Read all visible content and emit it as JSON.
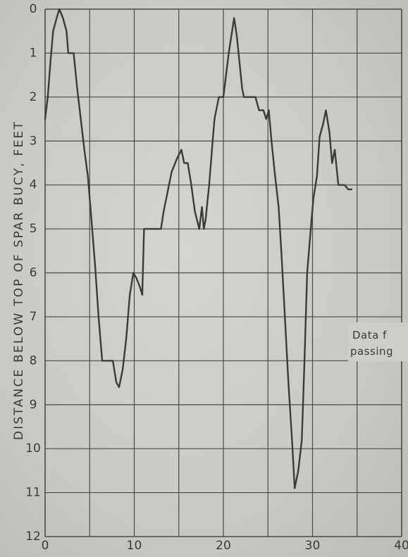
{
  "chart_data": {
    "type": "line",
    "title": "",
    "xlabel": "",
    "ylabel": "DISTANCE BELOW TOP OF SPAR BUCY, FEET",
    "xlim": [
      0,
      40
    ],
    "ylim": [
      0,
      12
    ],
    "y_inverted": true,
    "grid": true,
    "x_ticks": [
      "0",
      "10",
      "20",
      "30",
      "40"
    ],
    "y_ticks": [
      "0",
      "1",
      "2",
      "3",
      "4",
      "5",
      "6",
      "7",
      "8",
      "9",
      "10",
      "11",
      "12"
    ],
    "annotation_lines": [
      "Data f",
      "passing"
    ],
    "series": [
      {
        "points": [
          [
            0.0,
            2.5
          ],
          [
            0.3,
            2.0
          ],
          [
            0.6,
            1.2
          ],
          [
            0.9,
            0.5
          ],
          [
            1.3,
            0.2
          ],
          [
            1.6,
            0.0
          ],
          [
            2.0,
            0.2
          ],
          [
            2.4,
            0.5
          ],
          [
            2.6,
            1.0
          ],
          [
            3.0,
            1.0
          ],
          [
            3.2,
            1.0
          ],
          [
            3.6,
            1.8
          ],
          [
            4.0,
            2.5
          ],
          [
            4.4,
            3.2
          ],
          [
            4.8,
            3.8
          ],
          [
            5.2,
            4.8
          ],
          [
            5.6,
            5.8
          ],
          [
            6.0,
            7.0
          ],
          [
            6.4,
            8.0
          ],
          [
            7.0,
            8.0
          ],
          [
            7.6,
            8.0
          ],
          [
            8.0,
            8.5
          ],
          [
            8.3,
            8.6
          ],
          [
            8.7,
            8.2
          ],
          [
            9.1,
            7.5
          ],
          [
            9.5,
            6.5
          ],
          [
            9.9,
            6.0
          ],
          [
            10.2,
            6.1
          ],
          [
            10.6,
            6.3
          ],
          [
            10.9,
            6.5
          ],
          [
            11.1,
            5.0
          ],
          [
            12.0,
            5.0
          ],
          [
            13.0,
            5.0
          ],
          [
            13.3,
            4.6
          ],
          [
            13.7,
            4.2
          ],
          [
            14.2,
            3.7
          ],
          [
            14.8,
            3.4
          ],
          [
            15.3,
            3.2
          ],
          [
            15.6,
            3.5
          ],
          [
            16.0,
            3.5
          ],
          [
            16.4,
            4.0
          ],
          [
            16.8,
            4.6
          ],
          [
            17.3,
            5.0
          ],
          [
            17.6,
            4.5
          ],
          [
            17.8,
            5.0
          ],
          [
            18.0,
            4.8
          ],
          [
            18.4,
            4.0
          ],
          [
            18.8,
            3.0
          ],
          [
            19.0,
            2.5
          ],
          [
            19.3,
            2.2
          ],
          [
            19.5,
            2.0
          ],
          [
            20.0,
            2.0
          ],
          [
            20.3,
            1.5
          ],
          [
            20.6,
            1.0
          ],
          [
            20.9,
            0.6
          ],
          [
            21.2,
            0.2
          ],
          [
            21.5,
            0.6
          ],
          [
            21.8,
            1.2
          ],
          [
            22.1,
            1.8
          ],
          [
            22.3,
            2.0
          ],
          [
            23.0,
            2.0
          ],
          [
            23.6,
            2.0
          ],
          [
            24.0,
            2.3
          ],
          [
            24.5,
            2.3
          ],
          [
            24.8,
            2.5
          ],
          [
            25.1,
            2.3
          ],
          [
            25.4,
            3.0
          ],
          [
            25.8,
            3.8
          ],
          [
            26.2,
            4.5
          ],
          [
            26.5,
            5.5
          ],
          [
            26.9,
            7.0
          ],
          [
            27.3,
            8.5
          ],
          [
            27.7,
            9.8
          ],
          [
            28.0,
            10.9
          ],
          [
            28.4,
            10.5
          ],
          [
            28.8,
            9.8
          ],
          [
            29.1,
            8.0
          ],
          [
            29.4,
            6.0
          ],
          [
            29.8,
            5.0
          ],
          [
            30.1,
            4.3
          ],
          [
            30.5,
            3.8
          ],
          [
            30.8,
            2.9
          ],
          [
            31.2,
            2.6
          ],
          [
            31.5,
            2.3
          ],
          [
            31.9,
            2.8
          ],
          [
            32.2,
            3.5
          ],
          [
            32.5,
            3.2
          ],
          [
            32.9,
            4.0
          ],
          [
            33.3,
            4.0
          ],
          [
            33.6,
            4.0
          ],
          [
            34.0,
            4.1
          ],
          [
            34.4,
            4.1
          ]
        ]
      }
    ]
  }
}
